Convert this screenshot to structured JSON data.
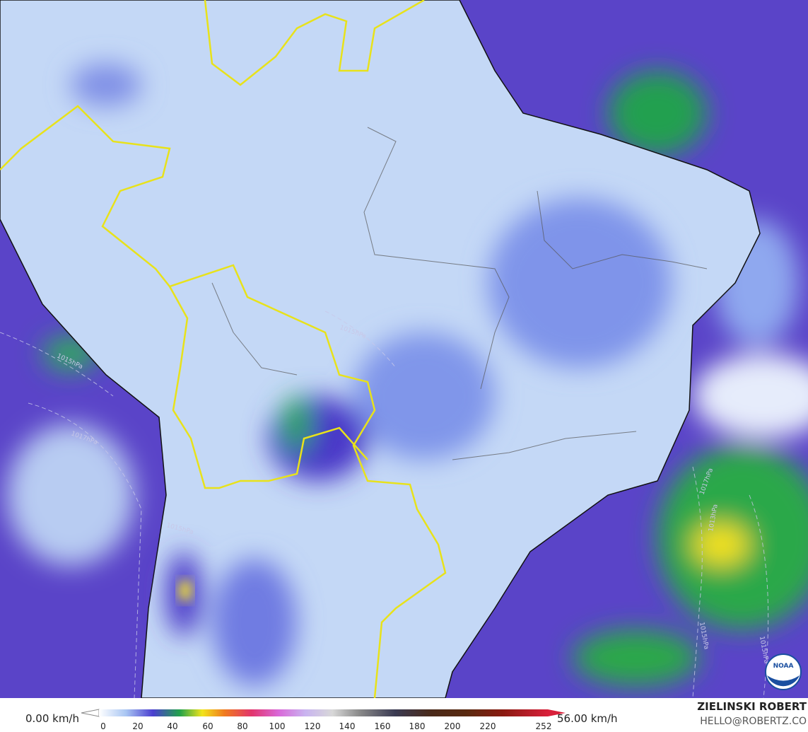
{
  "colorbar": {
    "min_label": "0.00 km/h",
    "max_label": "56.00 km/h",
    "ticks": [
      0,
      20,
      40,
      60,
      80,
      100,
      120,
      140,
      160,
      180,
      200,
      220,
      252
    ]
  },
  "credit": {
    "name": "ZIELINSKI ROBERT",
    "email": "HELLO@ROBERTZ.CO"
  },
  "isobar_labels": [
    "1015hPa",
    "1017hPa",
    "1015hPa",
    "1015hPa",
    "1017hPa",
    "1013hPa",
    "1015hPa",
    "1015hPa"
  ],
  "logo": "NOAA"
}
